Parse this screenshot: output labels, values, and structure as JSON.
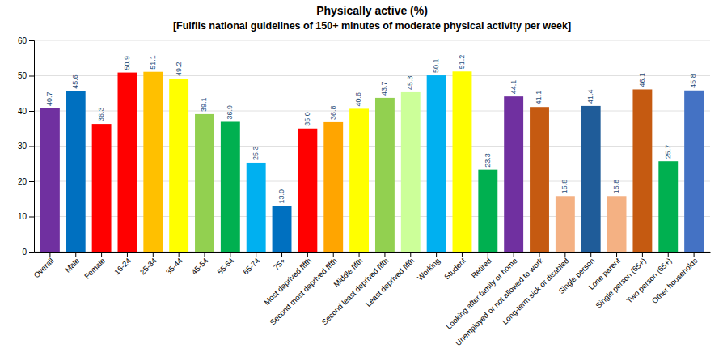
{
  "chart_data": {
    "type": "bar",
    "title": "Physically active (%)",
    "subtitle": "[Fulfils national guidelines of 150+ minutes of moderate physical activity per week]",
    "categories": [
      "Overall",
      "Male",
      "Female",
      "16-24",
      "25-34",
      "35-44",
      "45-54",
      "55-64",
      "65-74",
      "75+",
      "Most deprived fifth",
      "Second most deprived fifth",
      "Middle fifth",
      "Second least deprived fifth",
      "Least deprived fifth",
      "Working",
      "Student",
      "Retired",
      "Looking after family or home",
      "Unemployed or not allowed to work",
      "Long-term sick or disabled",
      "Single person",
      "Lone parent",
      "Single person (65+)",
      "Two person (65+)",
      "Other households"
    ],
    "values": [
      40.7,
      45.6,
      36.3,
      50.9,
      51.1,
      49.2,
      39.1,
      36.9,
      25.3,
      13.0,
      35.0,
      36.8,
      40.6,
      43.7,
      45.3,
      50.1,
      51.2,
      23.3,
      44.1,
      41.1,
      15.8,
      41.4,
      15.8,
      46.1,
      25.7,
      45.8
    ],
    "value_labels": [
      "40.7",
      "45.6",
      "36.3",
      "50.9",
      "51.1",
      "49.2",
      "39.1",
      "36.9",
      "25.3",
      "13.0",
      "35.0",
      "36.8",
      "40.6",
      "43.7",
      "45.3",
      "50.1",
      "51.2",
      "23.3",
      "44.1",
      "41.1",
      "15.8",
      "41.4",
      "15.8",
      "46.1",
      "25.7",
      "45.8"
    ],
    "colors": [
      "#7030a0",
      "#0070c0",
      "#ff0000",
      "#ff0000",
      "#ffc000",
      "#ffff00",
      "#92d050",
      "#00b050",
      "#00b0f0",
      "#0070c0",
      "#ff0000",
      "#ffa500",
      "#ffff00",
      "#92d050",
      "#ccff99",
      "#00b0f0",
      "#ffff00",
      "#00b050",
      "#7030a0",
      "#c55a11",
      "#f4b183",
      "#1f5c99",
      "#f4b183",
      "#c55a11",
      "#00b050",
      "#4472c4"
    ],
    "ylim": [
      0,
      60
    ],
    "yticks": [
      0,
      10,
      20,
      30,
      40,
      50,
      60
    ],
    "grid": true,
    "data_labels": true
  }
}
